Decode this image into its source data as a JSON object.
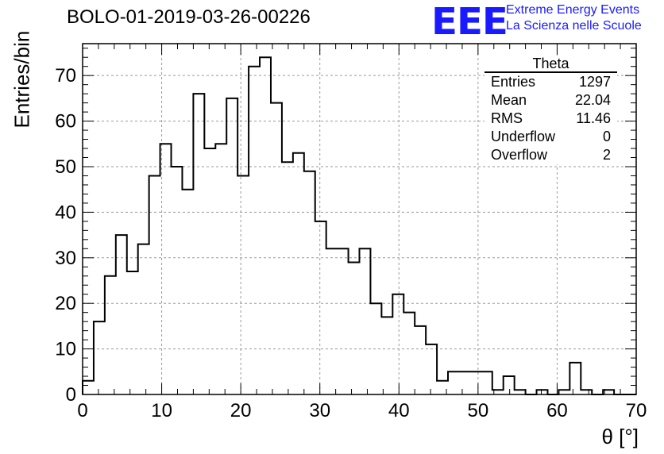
{
  "title": "BOLO-01-2019-03-26-00226",
  "logo": {
    "mark": "EEE",
    "line1": "Extreme Energy Events",
    "line2": "La Scienza nelle Scuole",
    "color": "#1a1aff"
  },
  "stats": {
    "name": "Theta",
    "rows": [
      {
        "label": "Entries",
        "value": "1297"
      },
      {
        "label": "Mean",
        "value": "22.04"
      },
      {
        "label": "RMS",
        "value": "11.46"
      },
      {
        "label": "Underflow",
        "value": "0"
      },
      {
        "label": "Overflow",
        "value": "2"
      }
    ]
  },
  "chart_data": {
    "type": "histogram",
    "title": "BOLO-01-2019-03-26-00226",
    "xlabel": "θ [°]",
    "ylabel": "Entries/bin",
    "xlim": [
      0,
      70
    ],
    "ylim": [
      0,
      77
    ],
    "bin_width": 1.4,
    "grid": true,
    "x_ticks": [
      0,
      10,
      20,
      30,
      40,
      50,
      60,
      70
    ],
    "y_ticks": [
      0,
      10,
      20,
      30,
      40,
      50,
      60,
      70
    ],
    "counts": [
      3,
      16,
      26,
      35,
      27,
      33,
      48,
      55,
      50,
      45,
      66,
      54,
      55,
      65,
      48,
      72,
      74,
      64,
      51,
      53,
      49,
      38,
      32,
      32,
      29,
      32,
      20,
      17,
      22,
      18,
      15,
      11,
      3,
      5,
      5,
      5,
      5,
      1,
      4,
      1,
      0,
      1,
      0,
      1,
      7,
      1,
      0,
      1,
      0,
      0
    ],
    "line_color": "#000000"
  }
}
